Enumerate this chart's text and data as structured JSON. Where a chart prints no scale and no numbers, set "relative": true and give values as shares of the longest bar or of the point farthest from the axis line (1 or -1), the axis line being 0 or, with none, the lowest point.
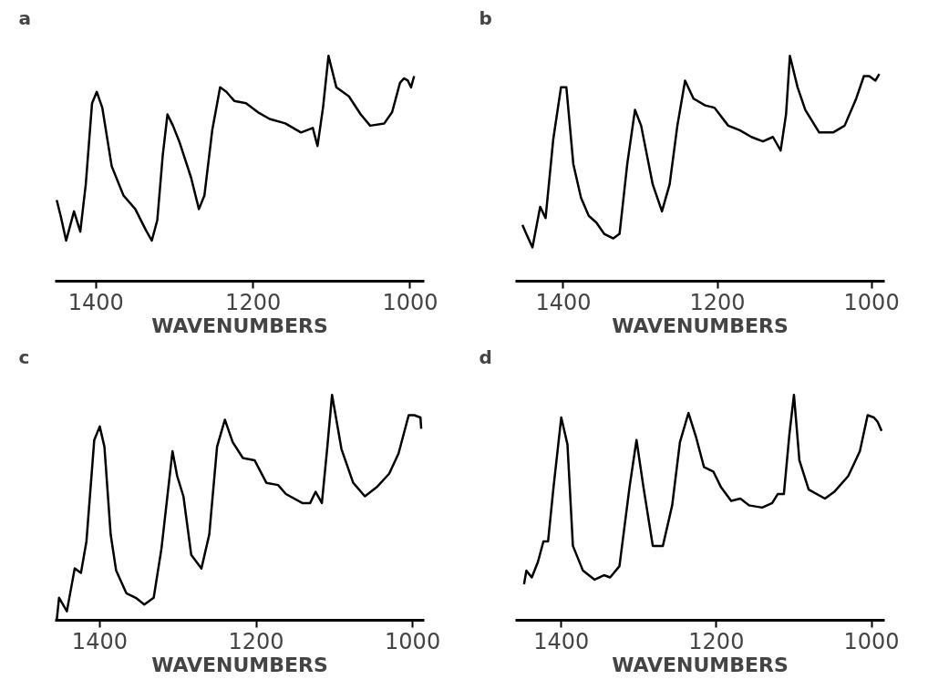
{
  "chart_data": [
    {
      "type": "line",
      "title": "a",
      "xlabel": "WAVENUMBERS",
      "relative": true,
      "color": "#000000",
      "xlim": [
        1452,
        982
      ],
      "xticks": [
        1400,
        1200,
        1000
      ],
      "x": [
        1450,
        1445,
        1438,
        1428,
        1420,
        1413,
        1405,
        1399,
        1392,
        1380,
        1365,
        1350,
        1337,
        1329,
        1322,
        1315,
        1309,
        1302,
        1294,
        1279,
        1269,
        1262,
        1252,
        1242,
        1234,
        1224,
        1209,
        1194,
        1179,
        1159,
        1139,
        1124,
        1118,
        1111,
        1104,
        1094,
        1078,
        1063,
        1051,
        1033,
        1023,
        1013,
        1008,
        1003,
        999,
        995
      ],
      "values": [
        0.36,
        0.29,
        0.18,
        0.31,
        0.22,
        0.43,
        0.79,
        0.84,
        0.77,
        0.51,
        0.38,
        0.32,
        0.23,
        0.18,
        0.27,
        0.56,
        0.74,
        0.69,
        0.62,
        0.46,
        0.32,
        0.38,
        0.67,
        0.86,
        0.84,
        0.8,
        0.79,
        0.75,
        0.72,
        0.7,
        0.66,
        0.68,
        0.6,
        0.77,
        1,
        0.86,
        0.82,
        0.74,
        0.69,
        0.7,
        0.75,
        0.88,
        0.9,
        0.89,
        0.86,
        0.91
      ]
    },
    {
      "type": "line",
      "title": "b",
      "xlabel": "WAVENUMBERS",
      "relative": true,
      "color": "#000000",
      "xlim": [
        1462,
        983
      ],
      "xticks": [
        1400,
        1200,
        1000
      ],
      "x": [
        1453,
        1448,
        1440,
        1430,
        1423,
        1413,
        1403,
        1396,
        1387,
        1377,
        1367,
        1357,
        1347,
        1335,
        1327,
        1317,
        1307,
        1299,
        1284,
        1272,
        1262,
        1252,
        1242,
        1231,
        1216,
        1204,
        1186,
        1171,
        1156,
        1141,
        1128,
        1118,
        1111,
        1106,
        1096,
        1086,
        1068,
        1050,
        1035,
        1020,
        1010,
        1003,
        995,
        990
      ],
      "values": [
        0.25,
        0.21,
        0.15,
        0.33,
        0.28,
        0.63,
        0.86,
        0.86,
        0.52,
        0.37,
        0.29,
        0.26,
        0.21,
        0.19,
        0.21,
        0.52,
        0.76,
        0.69,
        0.43,
        0.31,
        0.43,
        0.69,
        0.89,
        0.81,
        0.78,
        0.77,
        0.69,
        0.67,
        0.64,
        0.62,
        0.64,
        0.58,
        0.74,
        1,
        0.86,
        0.76,
        0.66,
        0.66,
        0.69,
        0.81,
        0.91,
        0.91,
        0.89,
        0.92
      ]
    },
    {
      "type": "line",
      "title": "c",
      "xlabel": "WAVENUMBERS",
      "relative": true,
      "color": "#000000",
      "xlim": [
        1457,
        985
      ],
      "xticks": [
        1400,
        1200,
        1000
      ],
      "x": [
        1455,
        1452,
        1442,
        1432,
        1424,
        1417,
        1407,
        1400,
        1394,
        1386,
        1379,
        1366,
        1354,
        1343,
        1331,
        1321,
        1307,
        1301,
        1293,
        1283,
        1270,
        1260,
        1250,
        1240,
        1230,
        1217,
        1202,
        1187,
        1172,
        1162,
        1141,
        1131,
        1124,
        1116,
        1109,
        1103,
        1091,
        1076,
        1061,
        1046,
        1030,
        1018,
        1005,
        998,
        990,
        989
      ],
      "values": [
        0,
        0.1,
        0.04,
        0.23,
        0.21,
        0.35,
        0.8,
        0.86,
        0.77,
        0.38,
        0.22,
        0.12,
        0.1,
        0.07,
        0.1,
        0.32,
        0.75,
        0.64,
        0.55,
        0.29,
        0.23,
        0.38,
        0.77,
        0.89,
        0.79,
        0.72,
        0.71,
        0.61,
        0.6,
        0.56,
        0.52,
        0.52,
        0.57,
        0.52,
        0.77,
        1,
        0.76,
        0.61,
        0.55,
        0.59,
        0.65,
        0.74,
        0.91,
        0.91,
        0.9,
        0.85
      ]
    },
    {
      "type": "line",
      "title": "d",
      "xlabel": "WAVENUMBERS",
      "relative": true,
      "color": "#000000",
      "xlim": [
        1459,
        983
      ],
      "xticks": [
        1400,
        1200,
        1000
      ],
      "x": [
        1448,
        1445,
        1438,
        1430,
        1423,
        1417,
        1410,
        1400,
        1392,
        1385,
        1372,
        1357,
        1345,
        1337,
        1325,
        1312,
        1303,
        1294,
        1282,
        1269,
        1257,
        1247,
        1236,
        1226,
        1216,
        1204,
        1194,
        1181,
        1169,
        1158,
        1141,
        1128,
        1121,
        1113,
        1106,
        1100,
        1093,
        1081,
        1060,
        1048,
        1030,
        1015,
        1005,
        997,
        992,
        987
      ],
      "values": [
        0.16,
        0.22,
        0.19,
        0.26,
        0.35,
        0.35,
        0.59,
        0.9,
        0.78,
        0.33,
        0.22,
        0.18,
        0.2,
        0.19,
        0.24,
        0.59,
        0.8,
        0.59,
        0.33,
        0.33,
        0.51,
        0.79,
        0.92,
        0.81,
        0.68,
        0.66,
        0.59,
        0.53,
        0.54,
        0.51,
        0.5,
        0.52,
        0.56,
        0.56,
        0.82,
        1,
        0.71,
        0.58,
        0.54,
        0.57,
        0.64,
        0.75,
        0.91,
        0.9,
        0.88,
        0.84
      ]
    }
  ]
}
